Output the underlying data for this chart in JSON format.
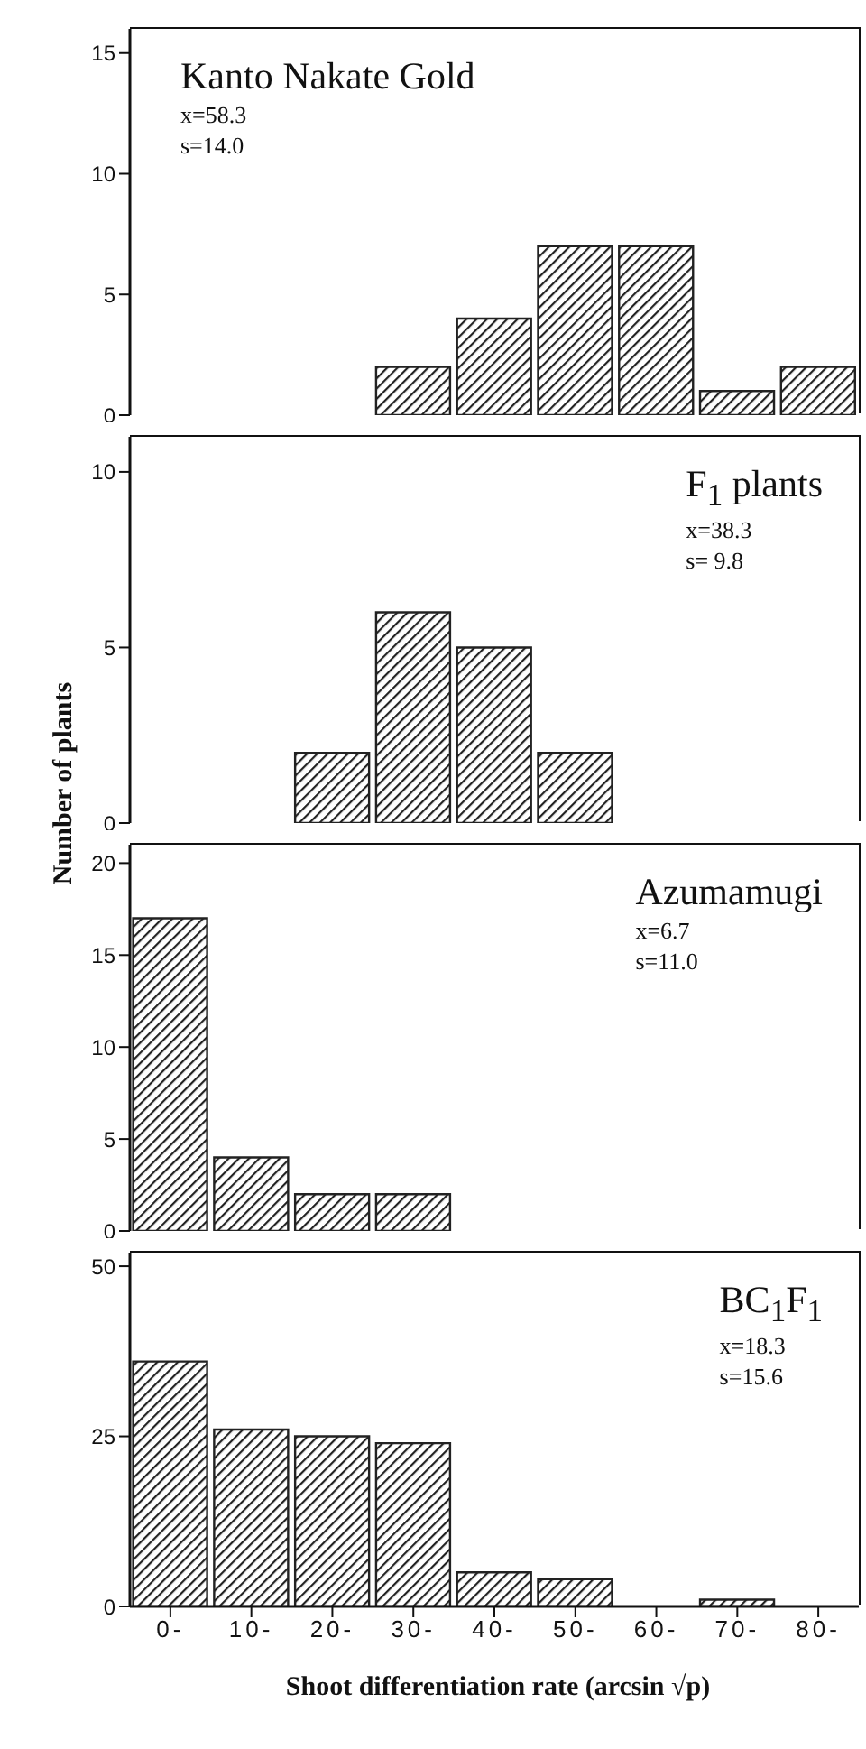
{
  "chart_data": [
    {
      "type": "bar",
      "title": "Kanto Nakate Gold",
      "annotations": [
        "x=58.3",
        "s=14.0"
      ],
      "categories": [
        null,
        null,
        null,
        null,
        null,
        null,
        null,
        null,
        null
      ],
      "values": [
        0,
        0,
        0,
        2,
        4,
        7,
        7,
        1,
        2
      ],
      "color": "#222222",
      "ylim": [
        0,
        16
      ],
      "yticks": [
        0,
        5,
        10,
        15
      ],
      "tick_labels": "y"
    },
    {
      "type": "bar",
      "title": "F$_{1}$ plants",
      "ylabel": "Number of plants",
      "annotations": [
        "x=38.3",
        "s= 9.8"
      ],
      "categories": [
        null,
        null,
        null,
        null,
        null,
        null,
        null,
        null,
        null
      ],
      "values": [
        0,
        0,
        2,
        6,
        5,
        2,
        0,
        0,
        0
      ],
      "color": "#222222",
      "ylim": [
        0,
        11
      ],
      "yticks": [
        0,
        5,
        10
      ],
      "tick_labels": "y"
    },
    {
      "type": "bar",
      "title": "Azumamugi",
      "annotations": [
        "x=6.7",
        "s=11.0"
      ],
      "categories": [
        null,
        null,
        null,
        null,
        null,
        null,
        null,
        null,
        null
      ],
      "values": [
        17,
        4,
        2,
        2,
        0,
        0,
        0,
        0,
        0
      ],
      "color": "#222222",
      "ylim": [
        0,
        21
      ],
      "yticks": [
        0,
        5,
        10,
        15,
        20
      ],
      "tick_labels": "y"
    },
    {
      "type": "bar",
      "title": "BC$_{1}$F$_{1}$",
      "xlabel": "Shoot differentiation rate (arcsin √p)",
      "annotations": [
        "x=18.3",
        "s=15.6"
      ],
      "categories": [
        "0-",
        "10-",
        "20-",
        "30-",
        "40-",
        "50-",
        "60-",
        "70-",
        "80-"
      ],
      "values": [
        36,
        26,
        25,
        24,
        5,
        4,
        0,
        1,
        0
      ],
      "color": "#222222",
      "ylim": [
        0,
        52
      ],
      "yticks": [
        0,
        25,
        50
      ]
    }
  ]
}
